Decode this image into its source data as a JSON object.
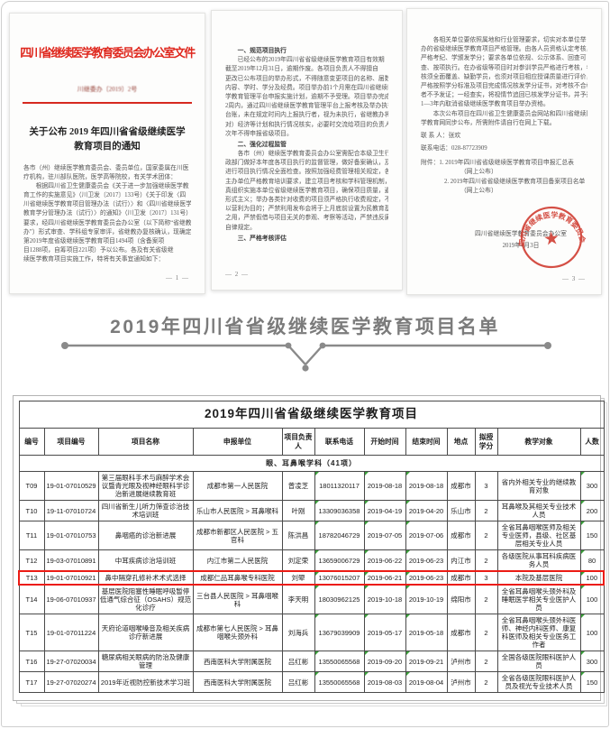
{
  "documents": {
    "page1": {
      "masthead": "四川省继续医学教育委员会办公室文件",
      "doc_number": "川继委办〔2019〕2号",
      "title_line1": "关于公布 2019 年四川省省级继续医学",
      "title_line2": "教育项目的通知",
      "body_lines": [
        "各市（州）继续医学教育委员会、委员单位，国家委属在川医",
        "疗机构，驻川部队医院，医学高等院校，有关学术团体：",
        "　　根据四川省卫生健康委员会《关于进一步加强继续医学教",
        "育工作的实施意见》（川卫发〔2017〕133号）《关于印发〈四",
        "川省继续医学教育项目管理办法（试行）〉和〈四川省继续医学",
        "教育学分管理办法（试行）〉的通知》（川卫发〔2017〕131号）",
        "要求，经四川省继续医学教育委员会办公室（以下简称“省继教",
        "办”）形式审查、学科组专家审评，省继教办复核确认，现确定",
        "第2019年度省级继续医学教育项目1494项（含备案项",
        "目1288项，自筹项目221项）予以公布。各及有关省级继",
        "续医学教育项目实施工作，特将有关事宜通知如下："
      ],
      "page_number": "— 1 —"
    },
    "page2": {
      "sections": [
        {
          "heading": "一、规范项目执行",
          "lines": [
            "　　已经公布的2019年四川省省级继续医学教育项目有效期",
            "截至2019年12月31日，逾期作废。各项目负责人不得擅自",
            "更改已公布项目的举办形式，不得随意变更项目的名称、届数、",
            "内容、学时、学分及经费。项目举办前1个月需在四川省继续医",
            "学教育管理平台申报实施计划，逾期不予受理。项目举办完成后",
            "2周内，通过四川省继续医学教育管理平台上报考核及举办执行",
            "台账，未在规定时间内上报执行者，视为未执行，省继教办将",
            "对）经济等计划和执行情况核实，必要时交流给项目的负责人，",
            "次年不得申报省级项目。"
          ]
        },
        {
          "heading": "二、强化过程监管",
          "lines": [
            "　　各市（州）继续医学教育委员会办公室需配合本级卫生行",
            "政部门做好本年度各项目执行的监督管理，做好备案确认，及时",
            "进行项目执行情况全面检查。按照加强经费管理相关规定，各级",
            "主办单位严格教育培训要求，建立项目考核和学科管理机制，认",
            "真组织实施本单位省级继续医学教育项目，确保项目质量，避免",
            "形式主义；举办各类针对收费的项目须严格执行收费规定，不得",
            "以营利为目的；严禁利用发布会将于上月底前设置为民教育基地",
            "之用，严禁假借与项目无关的参观、考察等活动，严禁违反廉洁",
            "自律规定。"
          ]
        },
        {
          "heading": "三、严格考核评估",
          "lines": []
        }
      ],
      "page_number": "— 2 —"
    },
    "page3": {
      "body_lines": [
        "　　各相关单位要依照属地和行业管理要求，切实对本单位举",
        "办的省级继续医学教育项目严格管理。由各人员资格认定考核，",
        "严格考纪、学颁发学分；要求各单位依规、公示体系、回查可",
        "查、按项执行。在办省级等项目时对参训学员严格进行考核，考",
        "核须全面覆盖、缺勤学员，也须对项目相应授课质量进行评价，",
        "严格按照学分标准及项目完成情况核发学分证书，对考核不合格",
        "者不予发证；一经查实，将视情节追回已核发学分证书，并予通报，",
        "1—3年内取消省级继续医学教育项目举办资格。",
        "　　本次公布项目在四川省卫生健康委员会网站和四川省继续医",
        "学教育网同步公布，所需附件请自行在网上下载。"
      ],
      "contact_person": "联 系 人：张欢",
      "contact_phone": "联系电话：028-87723909",
      "attachment_lines": [
        "附件：1. 2019年四川省省级继续医学教育项目申报汇总表",
        "（网上公布）",
        "2. 2019年四川省省级继续医学教育项目备案项目名单",
        "（网上公布）"
      ],
      "signature_line1": "四川省继续医学教育委员会办公室",
      "signature_line2": "2019年4月3日",
      "stamp_text": "四川省继续医学教育委员会办公室",
      "stamp_star": "★",
      "page_number": "— 3 —"
    }
  },
  "divider": {
    "title": "2019年四川省省级继续医学教育项目名单",
    "line_color": "#8a8a8a"
  },
  "table": {
    "title": "2019年四川省省级继续医学教育项目",
    "columns": [
      "编号",
      "项目编号",
      "项目名称",
      "申报单位",
      "项目负责人",
      "联系电话",
      "开始时间",
      "结束时间",
      "地点",
      "拟授学分",
      "教学对象",
      "人数"
    ],
    "section": "眼、耳鼻喉学科（41项）",
    "highlight_color": "#ec1b14",
    "rows": [
      {
        "no": "T09",
        "code": "19-01-07010529",
        "name": "第三届眼科手术与麻醉学术会议暨青光眼及视神经眼科学诊治新进展继续教育班",
        "unit": "成都市第一人民医院",
        "leader": "曾凌芝",
        "phone": "18011320117",
        "start": "2019-08-18",
        "end": "2019-08-18",
        "city": "成都市",
        "credit": "3",
        "audience": "省内外相关专业的继续教育对象",
        "num": "300",
        "hl": false
      },
      {
        "no": "T10",
        "code": "19-11-07010724",
        "name": "四川省新生儿听力筛查诊治技术培训班",
        "unit": "乐山市人民医院 > 耳鼻喉科",
        "leader": "叶刚",
        "phone": "13309036358",
        "start": "2019-04-19",
        "end": "2019-04-20",
        "city": "乐山市",
        "credit": "2",
        "audience": "耳鼻喉及其相关专业技术人员",
        "num": "200",
        "hl": false
      },
      {
        "no": "T11",
        "code": "19-01-07010753",
        "name": "鼻咽癌的诊治新进展",
        "unit": "成都市新都区人民医院 > 五官科",
        "leader": "陈洪昌",
        "phone": "18782046729",
        "start": "2019-07-05",
        "end": "2019-07-06",
        "city": "成都市",
        "credit": "2",
        "audience": "全省耳鼻咽喉医师及相关专业医师，县级、社区基层相关专业人员",
        "num": "150",
        "hl": false
      },
      {
        "no": "T12",
        "code": "19-03-07010891",
        "name": "中耳疾病诊治培训班",
        "unit": "内江市第二人民医院",
        "leader": "刘定荣",
        "phone": "13659006729",
        "start": "2019-06-22",
        "end": "2019-06-23",
        "city": "内江市",
        "credit": "2",
        "audience": "各级医院从事耳科疾病医务人员",
        "num": "80",
        "hl": false
      },
      {
        "no": "T13",
        "code": "19-01-07010921",
        "name": "鼻中隔穿孔修补术术式选择",
        "unit": "成都仁品耳鼻喉专科医院",
        "leader": "刘翚",
        "phone": "13076015207",
        "start": "2019-06-21",
        "end": "2019-06-23",
        "city": "成都市",
        "credit": "3",
        "audience": "本院及基层医院",
        "num": "100",
        "hl": true
      },
      {
        "no": "T14",
        "code": "19-06-07010937",
        "name": "基层医院阻塞性睡眠呼吸暂停低通气综合征（OSAHS）规范化诊疗",
        "unit": "三台县人民医院 > 耳鼻咽喉科",
        "leader": "李天明",
        "phone": "18030962125",
        "start": "2019-10-18",
        "end": "2019-10-19",
        "city": "绵阳市",
        "credit": "2",
        "audience": "全省耳鼻咽喉头颈外科及睡眠医学相关专业医护人员",
        "num": "100",
        "hl": false
      },
      {
        "no": "T15",
        "code": "19-01-07011224",
        "name": "天府论道咽喉嗓音及相关疾病诊疗新进展",
        "unit": "成都市第七人民医院 > 耳鼻咽喉头颈外科",
        "leader": "刘海兵",
        "phone": "13679039909",
        "start": "2019-05-17",
        "end": "2019-05-18",
        "city": "成都市",
        "credit": "2",
        "audience": "全省耳鼻咽喉头颈外科医师、神经内科医师、康复科医师及相关专业医务工作者",
        "num": "100",
        "hl": false
      },
      {
        "no": "T16",
        "code": "19-27-07020034",
        "name": "糖尿病相关眼病的防治及健康管理",
        "unit": "西南医科大学附属医院",
        "leader": "吕红彬",
        "phone": "13550065568",
        "start": "2019-09-20",
        "end": "2019-09-21",
        "city": "泸州市",
        "credit": "2",
        "audience": "全国各级医院眼科医护人员",
        "num": "300",
        "hl": false
      },
      {
        "no": "T17",
        "code": "19-27-07020274",
        "name": "2019年近视防控新技术学习班",
        "unit": "西南医科大学附属医院",
        "leader": "吕红彬",
        "phone": "13550065568",
        "start": "2019-08-03",
        "end": "2019-08-04",
        "city": "泸州市",
        "credit": "2",
        "audience": "全省各级医院眼科医护人员及视光专业技术人员",
        "num": "150",
        "hl": false
      }
    ]
  }
}
